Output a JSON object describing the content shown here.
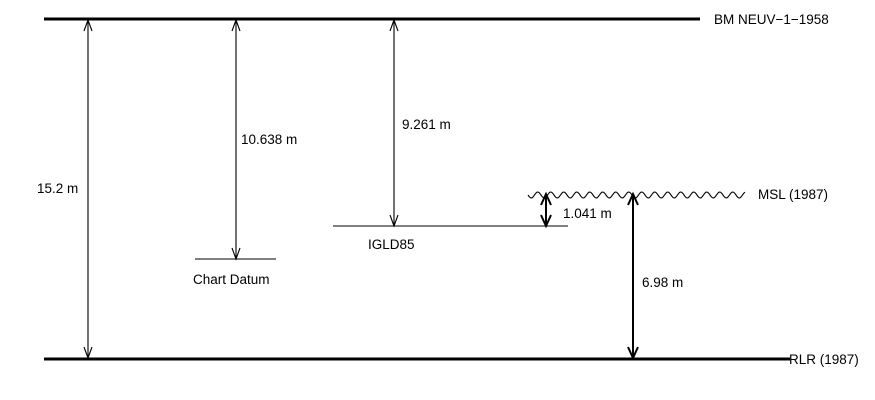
{
  "levels": {
    "bm": {
      "label": "BM NEUV−1−1958"
    },
    "msl": {
      "label": "MSL (1987)"
    },
    "igld": {
      "label": "IGLD85"
    },
    "chart_datum": {
      "label": "Chart Datum"
    },
    "rlr": {
      "label": "RLR (1987)"
    }
  },
  "measurements": {
    "bm_to_rlr": {
      "label": "15.2 m"
    },
    "bm_to_chart_datum": {
      "label": "10.638 m"
    },
    "bm_to_igld": {
      "label": "9.261 m"
    },
    "msl_to_igld": {
      "label": "1.041 m"
    },
    "msl_to_rlr": {
      "label": "6.98 m"
    }
  }
}
